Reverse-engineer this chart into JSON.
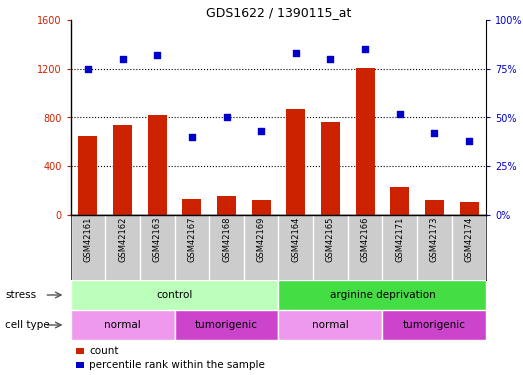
{
  "title": "GDS1622 / 1390115_at",
  "samples": [
    "GSM42161",
    "GSM42162",
    "GSM42163",
    "GSM42167",
    "GSM42168",
    "GSM42169",
    "GSM42164",
    "GSM42165",
    "GSM42166",
    "GSM42171",
    "GSM42173",
    "GSM42174"
  ],
  "counts": [
    650,
    740,
    820,
    130,
    160,
    120,
    870,
    760,
    1210,
    230,
    120,
    110
  ],
  "percentile_ranks": [
    75,
    80,
    82,
    40,
    50,
    43,
    83,
    80,
    85,
    52,
    42,
    38
  ],
  "left_ylim": [
    0,
    1600
  ],
  "right_ylim": [
    0,
    100
  ],
  "left_yticks": [
    0,
    400,
    800,
    1200,
    1600
  ],
  "right_yticks": [
    0,
    25,
    50,
    75,
    100
  ],
  "right_yticklabels": [
    "0%",
    "25%",
    "50%",
    "75%",
    "100%"
  ],
  "bar_color": "#cc2200",
  "dot_color": "#0000cc",
  "stress_groups": [
    {
      "label": "control",
      "start": 0,
      "end": 6,
      "color": "#bbffbb"
    },
    {
      "label": "arginine deprivation",
      "start": 6,
      "end": 12,
      "color": "#44dd44"
    }
  ],
  "cell_type_groups": [
    {
      "label": "normal",
      "start": 0,
      "end": 3,
      "color": "#ee99ee"
    },
    {
      "label": "tumorigenic",
      "start": 3,
      "end": 6,
      "color": "#cc44cc"
    },
    {
      "label": "normal",
      "start": 6,
      "end": 9,
      "color": "#ee99ee"
    },
    {
      "label": "tumorigenic",
      "start": 9,
      "end": 12,
      "color": "#cc44cc"
    }
  ],
  "legend_count_label": "count",
  "legend_pct_label": "percentile rank within the sample",
  "stress_label": "stress",
  "cell_type_label": "cell type",
  "title_color": "#000000",
  "sample_bg_color": "#cccccc",
  "left_tick_color": "#cc2200",
  "right_tick_color": "#0000cc"
}
